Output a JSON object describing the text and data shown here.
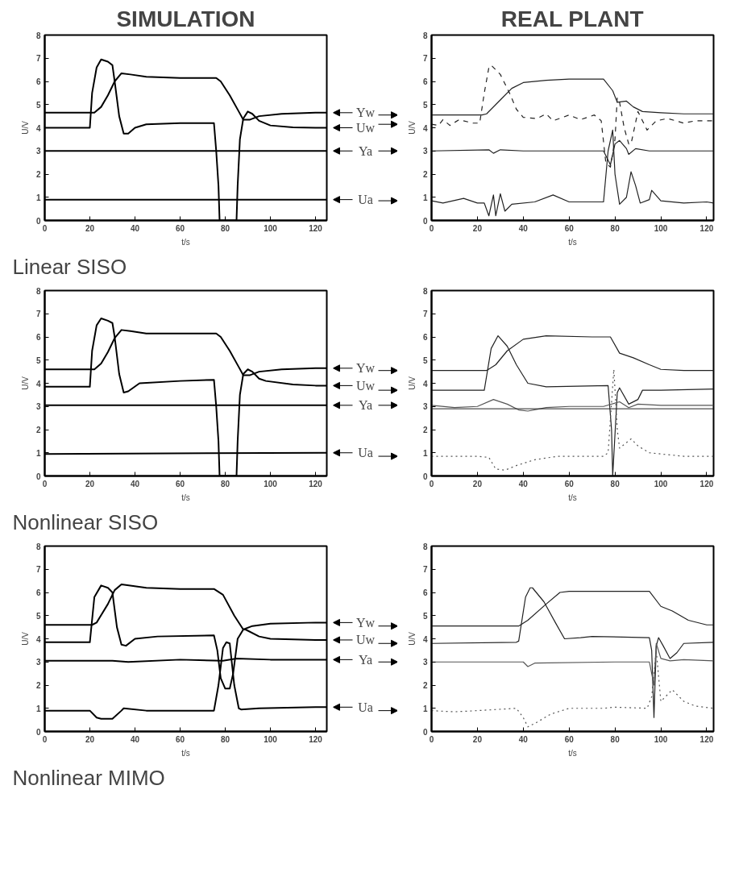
{
  "chart_data": [
    {
      "type": "line",
      "title": "SIMULATION",
      "xlabel": "t/s",
      "ylabel": "U/V",
      "annotations": [
        "Linear SISO"
      ],
      "legend": "right",
      "xlim": [
        0,
        125
      ],
      "ylim": [
        0,
        8
      ],
      "xticks": [
        0,
        20,
        40,
        60,
        80,
        100,
        120
      ],
      "yticks": [
        0,
        1,
        2,
        3,
        4,
        5,
        6,
        7,
        8
      ],
      "series": [
        {
          "name": "Yw",
          "color": "#000000",
          "x": [
            0,
            22,
            25,
            28,
            31,
            34,
            38,
            45,
            60,
            76,
            78,
            82,
            86,
            88,
            91,
            95,
            105,
            120,
            125
          ],
          "values": [
            4.65,
            4.65,
            4.9,
            5.4,
            6.0,
            6.35,
            6.3,
            6.2,
            6.15,
            6.15,
            6.0,
            5.4,
            4.7,
            4.35,
            4.35,
            4.5,
            4.6,
            4.65,
            4.65
          ]
        },
        {
          "name": "Uw",
          "color": "#000000",
          "x": [
            0,
            20,
            21,
            23,
            25,
            28,
            30,
            31,
            33,
            35,
            37,
            40,
            45,
            60,
            75,
            76,
            77,
            77.5,
            85,
            85.5,
            86.5,
            88,
            90,
            92,
            95,
            100,
            110,
            120,
            125
          ],
          "values": [
            4.0,
            4.0,
            5.5,
            6.6,
            6.95,
            6.85,
            6.7,
            6.0,
            4.5,
            3.75,
            3.75,
            4.0,
            4.15,
            4.2,
            4.2,
            3.0,
            1.5,
            0,
            0,
            1.5,
            3.5,
            4.4,
            4.7,
            4.6,
            4.3,
            4.1,
            4.02,
            4.0,
            4.0
          ]
        },
        {
          "name": "Ya",
          "color": "#000000",
          "x": [
            0,
            125
          ],
          "values": [
            3.0,
            3.0
          ]
        },
        {
          "name": "Ua",
          "color": "#000000",
          "x": [
            0,
            125
          ],
          "values": [
            0.9,
            0.9
          ]
        }
      ]
    },
    {
      "type": "line",
      "title": "REAL PLANT",
      "xlabel": "t/s",
      "ylabel": "U/V",
      "xlim": [
        0,
        123
      ],
      "ylim": [
        0,
        8
      ],
      "xticks": [
        0,
        20,
        40,
        60,
        80,
        100,
        120
      ],
      "yticks": [
        0,
        1,
        2,
        3,
        4,
        5,
        6,
        7,
        8
      ],
      "series": [
        {
          "color": "#222222",
          "x": [
            0,
            22,
            24,
            30,
            35,
            40,
            50,
            60,
            75,
            79,
            81,
            85,
            88,
            92,
            100,
            110,
            123
          ],
          "values": [
            4.55,
            4.55,
            4.6,
            5.2,
            5.7,
            5.95,
            6.05,
            6.1,
            6.1,
            5.6,
            5.1,
            5.15,
            4.9,
            4.7,
            4.65,
            4.6,
            4.6
          ]
        },
        {
          "color": "#222222",
          "line_style": "dashed",
          "x": [
            0,
            3,
            5,
            8,
            12,
            18,
            21,
            23,
            25,
            26,
            30,
            34,
            37,
            40,
            46,
            50,
            53,
            60,
            65,
            71,
            74,
            76,
            78,
            80,
            81,
            82,
            84,
            86,
            87,
            90,
            94,
            98,
            103,
            110,
            115,
            123
          ],
          "values": [
            4.15,
            4.1,
            4.35,
            4.1,
            4.35,
            4.2,
            4.2,
            5.5,
            6.6,
            6.7,
            6.3,
            5.5,
            4.8,
            4.45,
            4.4,
            4.6,
            4.3,
            4.55,
            4.35,
            4.55,
            4.3,
            2.5,
            2.3,
            3.5,
            5.3,
            5.1,
            4.0,
            3.3,
            3.3,
            4.7,
            3.9,
            4.3,
            4.4,
            4.2,
            4.3,
            4.3
          ]
        },
        {
          "color": "#222222",
          "x": [
            0,
            25,
            27,
            30,
            40,
            75,
            77,
            78,
            80,
            82,
            85,
            86,
            89,
            95,
            123
          ],
          "values": [
            3.0,
            3.05,
            2.9,
            3.05,
            3.0,
            3.0,
            2.6,
            2.4,
            3.3,
            3.45,
            3.1,
            2.85,
            3.1,
            3.0,
            3.0
          ]
        },
        {
          "color": "#222222",
          "x": [
            0,
            5,
            14,
            20,
            23,
            25,
            27,
            28,
            30,
            32,
            35,
            45,
            53,
            60,
            70,
            75,
            77,
            79,
            80,
            82,
            85,
            87,
            89,
            91,
            95,
            96,
            100,
            110,
            120,
            123
          ],
          "values": [
            0.85,
            0.75,
            0.95,
            0.75,
            0.75,
            0.2,
            1.1,
            0.2,
            1.15,
            0.4,
            0.7,
            0.8,
            1.1,
            0.8,
            0.8,
            0.8,
            3.0,
            3.9,
            2.0,
            0.7,
            1.0,
            2.1,
            1.5,
            0.75,
            0.9,
            1.3,
            0.85,
            0.75,
            0.8,
            0.75
          ]
        }
      ]
    },
    {
      "type": "line",
      "xlabel": "t/s",
      "ylabel": "U/V",
      "annotations": [
        "Nonlinear SISO"
      ],
      "legend": "right",
      "xlim": [
        0,
        125
      ],
      "ylim": [
        0,
        8
      ],
      "xticks": [
        0,
        20,
        40,
        60,
        80,
        100,
        120
      ],
      "yticks": [
        0,
        1,
        2,
        3,
        4,
        5,
        6,
        7,
        8
      ],
      "series": [
        {
          "name": "Yw",
          "color": "#000000",
          "x": [
            0,
            22,
            25,
            28,
            31,
            34,
            38,
            45,
            60,
            76,
            78,
            82,
            86,
            88,
            91,
            95,
            105,
            120,
            125
          ],
          "values": [
            4.6,
            4.6,
            4.85,
            5.35,
            5.95,
            6.3,
            6.25,
            6.15,
            6.15,
            6.15,
            6.0,
            5.4,
            4.7,
            4.35,
            4.35,
            4.5,
            4.6,
            4.65,
            4.65
          ]
        },
        {
          "name": "Uw",
          "color": "#000000",
          "x": [
            0,
            20,
            21,
            23,
            25,
            28,
            30,
            31,
            33,
            35,
            37,
            42,
            60,
            75,
            76,
            77,
            77.5,
            85,
            85.5,
            86.5,
            88,
            90,
            92,
            95,
            98,
            110,
            120,
            125
          ],
          "values": [
            3.85,
            3.85,
            5.4,
            6.5,
            6.8,
            6.7,
            6.6,
            6.0,
            4.4,
            3.6,
            3.65,
            4.0,
            4.1,
            4.15,
            3.0,
            1.5,
            0,
            0,
            1.5,
            3.5,
            4.4,
            4.6,
            4.5,
            4.2,
            4.1,
            3.95,
            3.9,
            3.9
          ]
        },
        {
          "name": "Ya",
          "color": "#000000",
          "x": [
            0,
            125
          ],
          "values": [
            3.05,
            3.05
          ]
        },
        {
          "name": "Ua",
          "color": "#000000",
          "x": [
            0,
            125
          ],
          "values": [
            0.95,
            1.0
          ]
        }
      ]
    },
    {
      "type": "line",
      "xlabel": "t/s",
      "ylabel": "U/V",
      "xlim": [
        0,
        123
      ],
      "ylim": [
        0,
        8
      ],
      "xticks": [
        0,
        20,
        40,
        60,
        80,
        100,
        120
      ],
      "yticks": [
        0,
        1,
        2,
        3,
        4,
        5,
        6,
        7,
        8
      ],
      "ref_lines": [
        {
          "axis": "y",
          "value": 2.9,
          "color": "#222222"
        }
      ],
      "series": [
        {
          "color": "#222222",
          "x": [
            0,
            24,
            28,
            33,
            40,
            50,
            70,
            78,
            82,
            88,
            95,
            100,
            110,
            123
          ],
          "values": [
            4.55,
            4.55,
            4.8,
            5.4,
            5.9,
            6.05,
            6.0,
            6.0,
            5.3,
            5.1,
            4.8,
            4.6,
            4.55,
            4.55
          ]
        },
        {
          "color": "#222222",
          "x": [
            0,
            23,
            26,
            29,
            33,
            37,
            42,
            50,
            77,
            78.5,
            79,
            81,
            82,
            86,
            90,
            92,
            100,
            123
          ],
          "values": [
            3.7,
            3.7,
            5.5,
            6.05,
            5.6,
            4.8,
            4.0,
            3.85,
            3.9,
            2.0,
            0,
            3.6,
            3.8,
            3.1,
            3.3,
            3.7,
            3.7,
            3.75
          ]
        },
        {
          "color": "#555555",
          "x": [
            0,
            10,
            20,
            27,
            33,
            38,
            42,
            50,
            60,
            75,
            82,
            86,
            90,
            100,
            123
          ],
          "values": [
            3.05,
            2.95,
            3.0,
            3.3,
            3.1,
            2.85,
            2.8,
            2.95,
            3.0,
            3.0,
            3.2,
            2.95,
            3.1,
            3.05,
            3.05
          ]
        },
        {
          "color": "#555555",
          "line_style": "dotted",
          "x": [
            0,
            20,
            25,
            28,
            32,
            37,
            45,
            55,
            75,
            77,
            79.5,
            81,
            82,
            87,
            90,
            95,
            100,
            110,
            123
          ],
          "values": [
            0.85,
            0.85,
            0.8,
            0.3,
            0.25,
            0.45,
            0.7,
            0.85,
            0.85,
            1.0,
            4.6,
            2.0,
            1.2,
            1.6,
            1.3,
            1.0,
            0.95,
            0.85,
            0.85
          ]
        }
      ]
    },
    {
      "type": "line",
      "xlabel": "t/s",
      "ylabel": "U/V",
      "annotations": [
        "Nonlinear MIMO"
      ],
      "legend": "right",
      "xlim": [
        0,
        125
      ],
      "ylim": [
        0,
        8
      ],
      "xticks": [
        0,
        20,
        40,
        60,
        80,
        100,
        120
      ],
      "yticks": [
        0,
        1,
        2,
        3,
        4,
        5,
        6,
        7,
        8
      ],
      "series": [
        {
          "name": "Yw",
          "color": "#000000",
          "x": [
            0,
            21,
            23,
            28,
            31,
            34,
            45,
            60,
            75,
            79,
            84,
            88,
            92,
            100,
            120,
            125
          ],
          "values": [
            4.6,
            4.6,
            4.7,
            5.5,
            6.1,
            6.35,
            6.2,
            6.15,
            6.15,
            5.9,
            5.0,
            4.4,
            4.55,
            4.65,
            4.7,
            4.7
          ]
        },
        {
          "name": "Uw",
          "color": "#000000",
          "x": [
            0,
            20,
            22,
            25,
            28,
            30,
            32,
            34,
            36,
            40,
            50,
            75,
            76.5,
            78,
            80,
            82,
            83.5,
            85.5,
            88,
            89,
            95,
            100,
            120,
            125
          ],
          "values": [
            3.85,
            3.85,
            5.8,
            6.3,
            6.2,
            6.0,
            4.5,
            3.75,
            3.7,
            4.0,
            4.1,
            4.15,
            3.5,
            2.3,
            1.85,
            1.85,
            2.5,
            4.0,
            4.4,
            4.4,
            4.1,
            4.0,
            3.95,
            3.95
          ]
        },
        {
          "name": "Ya",
          "color": "#000000",
          "x": [
            0,
            30,
            37,
            60,
            79,
            85,
            100,
            125
          ],
          "values": [
            3.05,
            3.05,
            3.0,
            3.1,
            3.05,
            3.15,
            3.1,
            3.1
          ]
        },
        {
          "name": "Ua",
          "color": "#000000",
          "x": [
            0,
            20,
            23,
            25,
            30,
            34,
            35,
            45,
            75,
            77,
            79,
            80.5,
            82,
            84,
            86,
            87,
            95,
            120,
            125
          ],
          "values": [
            0.9,
            0.9,
            0.6,
            0.55,
            0.55,
            0.9,
            1.0,
            0.9,
            0.9,
            2.0,
            3.6,
            3.85,
            3.8,
            2.0,
            1.0,
            0.95,
            1.0,
            1.05,
            1.05
          ]
        }
      ]
    },
    {
      "type": "line",
      "xlabel": "t/s",
      "ylabel": "U/V",
      "xlim": [
        0,
        123
      ],
      "ylim": [
        0,
        8
      ],
      "xticks": [
        0,
        20,
        40,
        60,
        80,
        100,
        120
      ],
      "yticks": [
        0,
        1,
        2,
        3,
        4,
        5,
        6,
        7,
        8
      ],
      "series": [
        {
          "color": "#222222",
          "x": [
            0,
            38,
            42,
            50,
            56,
            60,
            95,
            100,
            105,
            112,
            120,
            123
          ],
          "values": [
            4.55,
            4.55,
            4.8,
            5.5,
            6.0,
            6.05,
            6.05,
            5.4,
            5.2,
            4.8,
            4.6,
            4.6
          ]
        },
        {
          "color": "#222222",
          "x": [
            0,
            37,
            38,
            41,
            43,
            44,
            49,
            54,
            58,
            65,
            70,
            95,
            96,
            97,
            98,
            99,
            101,
            104,
            107,
            110,
            123
          ],
          "values": [
            3.8,
            3.85,
            3.9,
            5.8,
            6.2,
            6.2,
            5.6,
            4.7,
            4.0,
            4.05,
            4.1,
            4.05,
            3.5,
            0.6,
            3.7,
            4.05,
            3.7,
            3.15,
            3.4,
            3.8,
            3.85
          ]
        },
        {
          "color": "#555555",
          "x": [
            0,
            40,
            42,
            45,
            80,
            95,
            97,
            98,
            100,
            104,
            110,
            123
          ],
          "values": [
            3.0,
            3.0,
            2.8,
            2.95,
            3.0,
            3.0,
            2.0,
            3.8,
            3.15,
            3.05,
            3.1,
            3.05
          ]
        },
        {
          "color": "#555555",
          "line_style": "dotted",
          "x": [
            0,
            10,
            20,
            37,
            40,
            42,
            46,
            52,
            60,
            75,
            80,
            94,
            96,
            98,
            100,
            103,
            105,
            110,
            115,
            123
          ],
          "values": [
            0.9,
            0.85,
            0.9,
            1.0,
            0.6,
            0.2,
            0.4,
            0.75,
            1.0,
            1.0,
            1.05,
            1.0,
            1.5,
            3.5,
            1.3,
            1.6,
            1.8,
            1.3,
            1.1,
            1.0
          ]
        }
      ]
    }
  ]
}
